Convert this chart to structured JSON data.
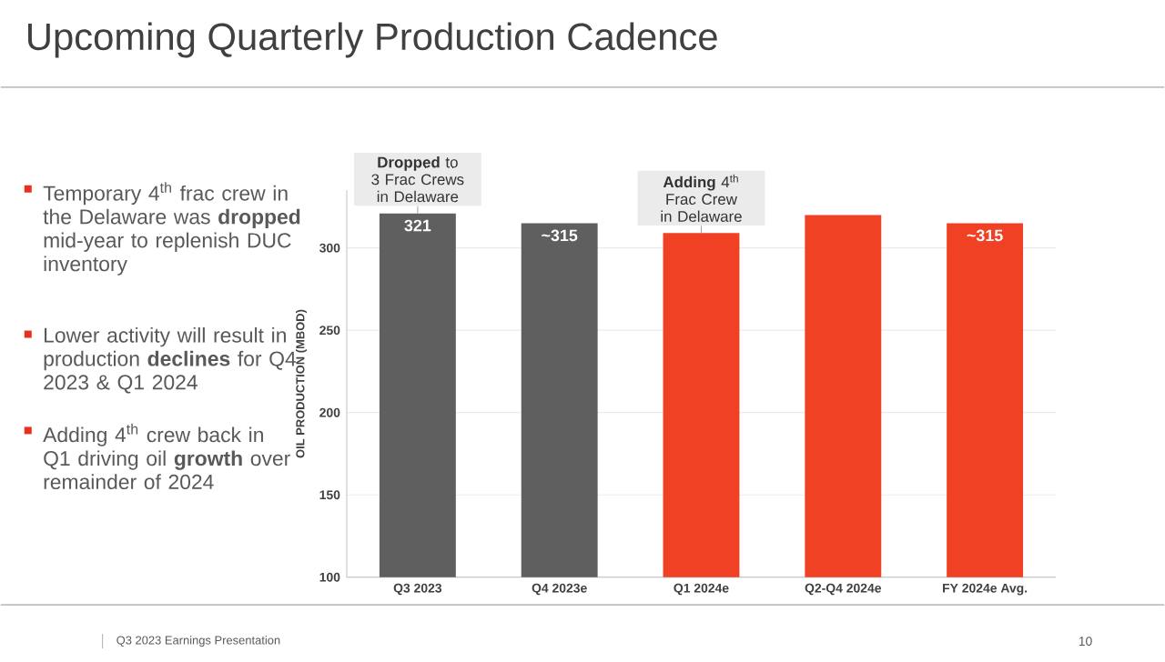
{
  "chart_data": {
    "type": "bar",
    "title": "Upcoming Quarterly Production Cadence",
    "ylabel": "OIL PRODUCTION (MBOD)",
    "categories": [
      "Q3 2023",
      "Q4 2023e",
      "Q1 2024e",
      "Q2-Q4 2024e",
      "FY 2024e Avg."
    ],
    "values": [
      321,
      315,
      309,
      320,
      315
    ],
    "colors": [
      "#5f5f5f",
      "#5f5f5f",
      "#f04124",
      "#f04124",
      "#f04124"
    ],
    "value_labels": [
      "321",
      "~315",
      null,
      null,
      "~315"
    ],
    "ylim": [
      100,
      335
    ],
    "yticks": [
      100,
      150,
      200,
      250,
      300
    ],
    "grid": "y",
    "annotations": [
      {
        "text": "**Dropped** to 3 Frac Crews in Delaware",
        "x": "Q3 2023",
        "y": 321
      },
      {
        "text": "**Adding** 4$^{th}$ Frac Crew in Delaware",
        "x": "Q1 2024e",
        "y": 309
      },
      "Temporary 4$^{th}$ frac crew in the Delaware was **dropped** mid-year to replenish DUC inventory",
      "Lower activity will result in production **declines** for Q4 2023 & Q1 2024",
      "Adding 4$^{th}$ crew back in Q1 driving oil **growth** over remainder of 2024",
      "Q3 2023 Earnings Presentation",
      "10"
    ]
  }
}
